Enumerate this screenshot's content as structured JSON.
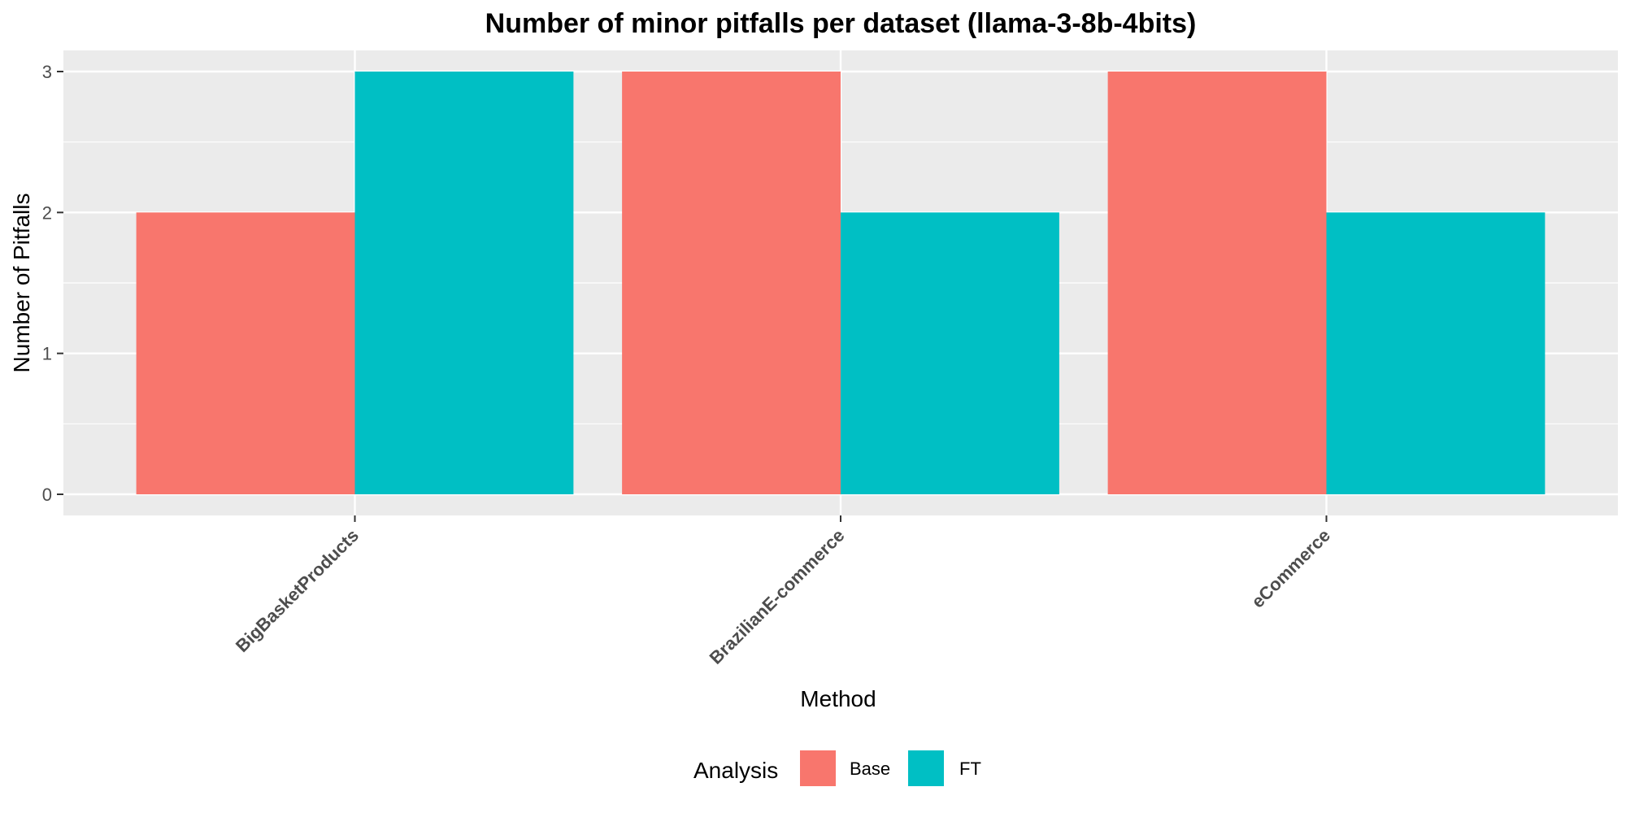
{
  "chart_data": {
    "type": "bar",
    "title": "Number of minor pitfalls per dataset (llama-3-8b-4bits)",
    "xlabel": "Method",
    "ylabel": "Number of Pitfalls",
    "categories": [
      "BigBasketProducts",
      "BrazilianE-commerce",
      "eCommerce"
    ],
    "series": [
      {
        "name": "Base",
        "values": [
          2,
          3,
          3
        ],
        "color": "#F8766D"
      },
      {
        "name": "FT",
        "values": [
          3,
          2,
          2
        ],
        "color": "#00BFC4"
      }
    ],
    "ylim": [
      -0.15,
      3.15
    ],
    "yticks": [
      0,
      1,
      2,
      3
    ],
    "grid": true,
    "legend": {
      "title": "Analysis",
      "position": "bottom"
    }
  }
}
